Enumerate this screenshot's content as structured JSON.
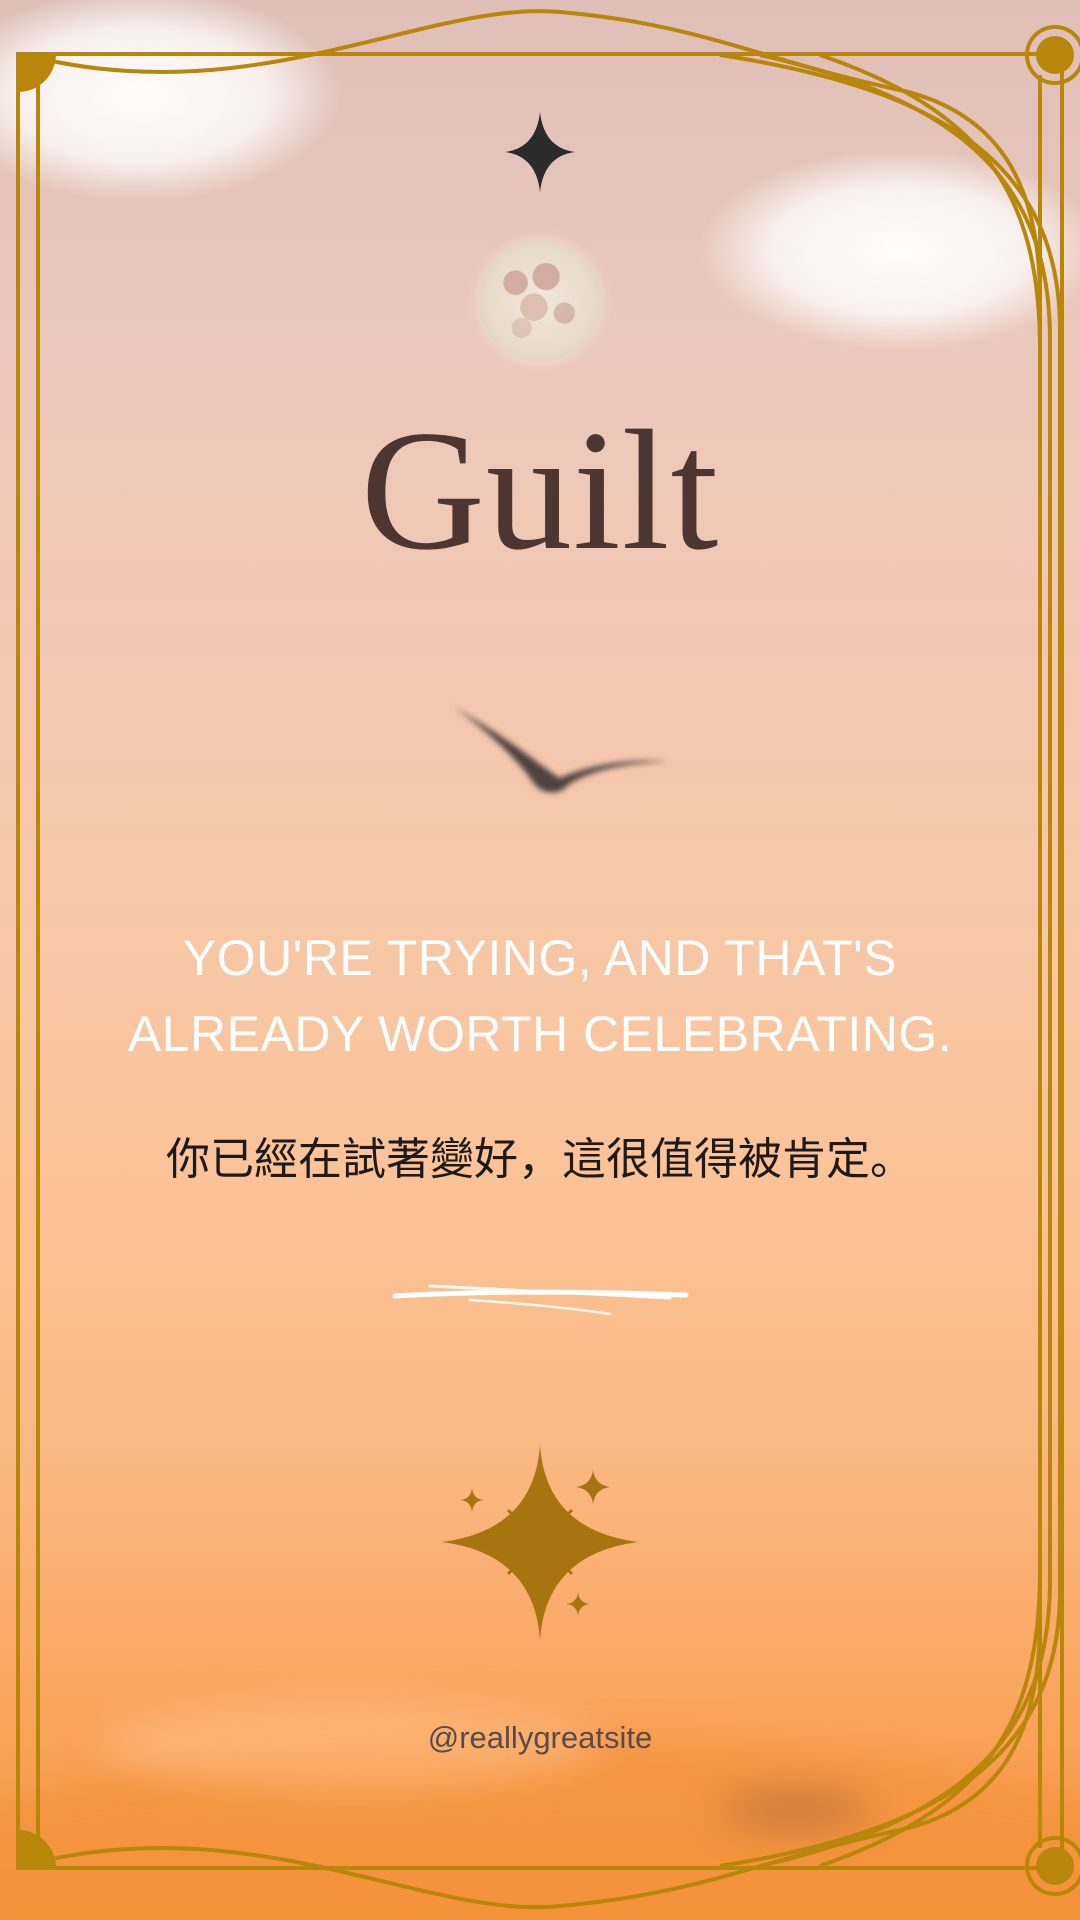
{
  "title": "Guilt",
  "quote": {
    "line1": "YOU'RE TRYING, AND THAT'S",
    "line2": "ALREADY WORTH CELEBRATING."
  },
  "chinese_text": "你已經在試著變好，這很值得被肯定。",
  "website": "@reallygreatsite",
  "icons": {
    "top_star": "four-point-star-icon",
    "moon": "full-moon",
    "bird": "flying-bird",
    "brush": "white-brush-stroke",
    "sparkles": "sparkle-cluster-icon"
  },
  "colors": {
    "frame_gold": "#b8860b",
    "title_brown": "#4d3531",
    "quote_white": "#ffffff",
    "chinese_dark": "#1e1a1a",
    "star_dark": "#2b2b2b",
    "sparkle_gold": "#a87410"
  }
}
